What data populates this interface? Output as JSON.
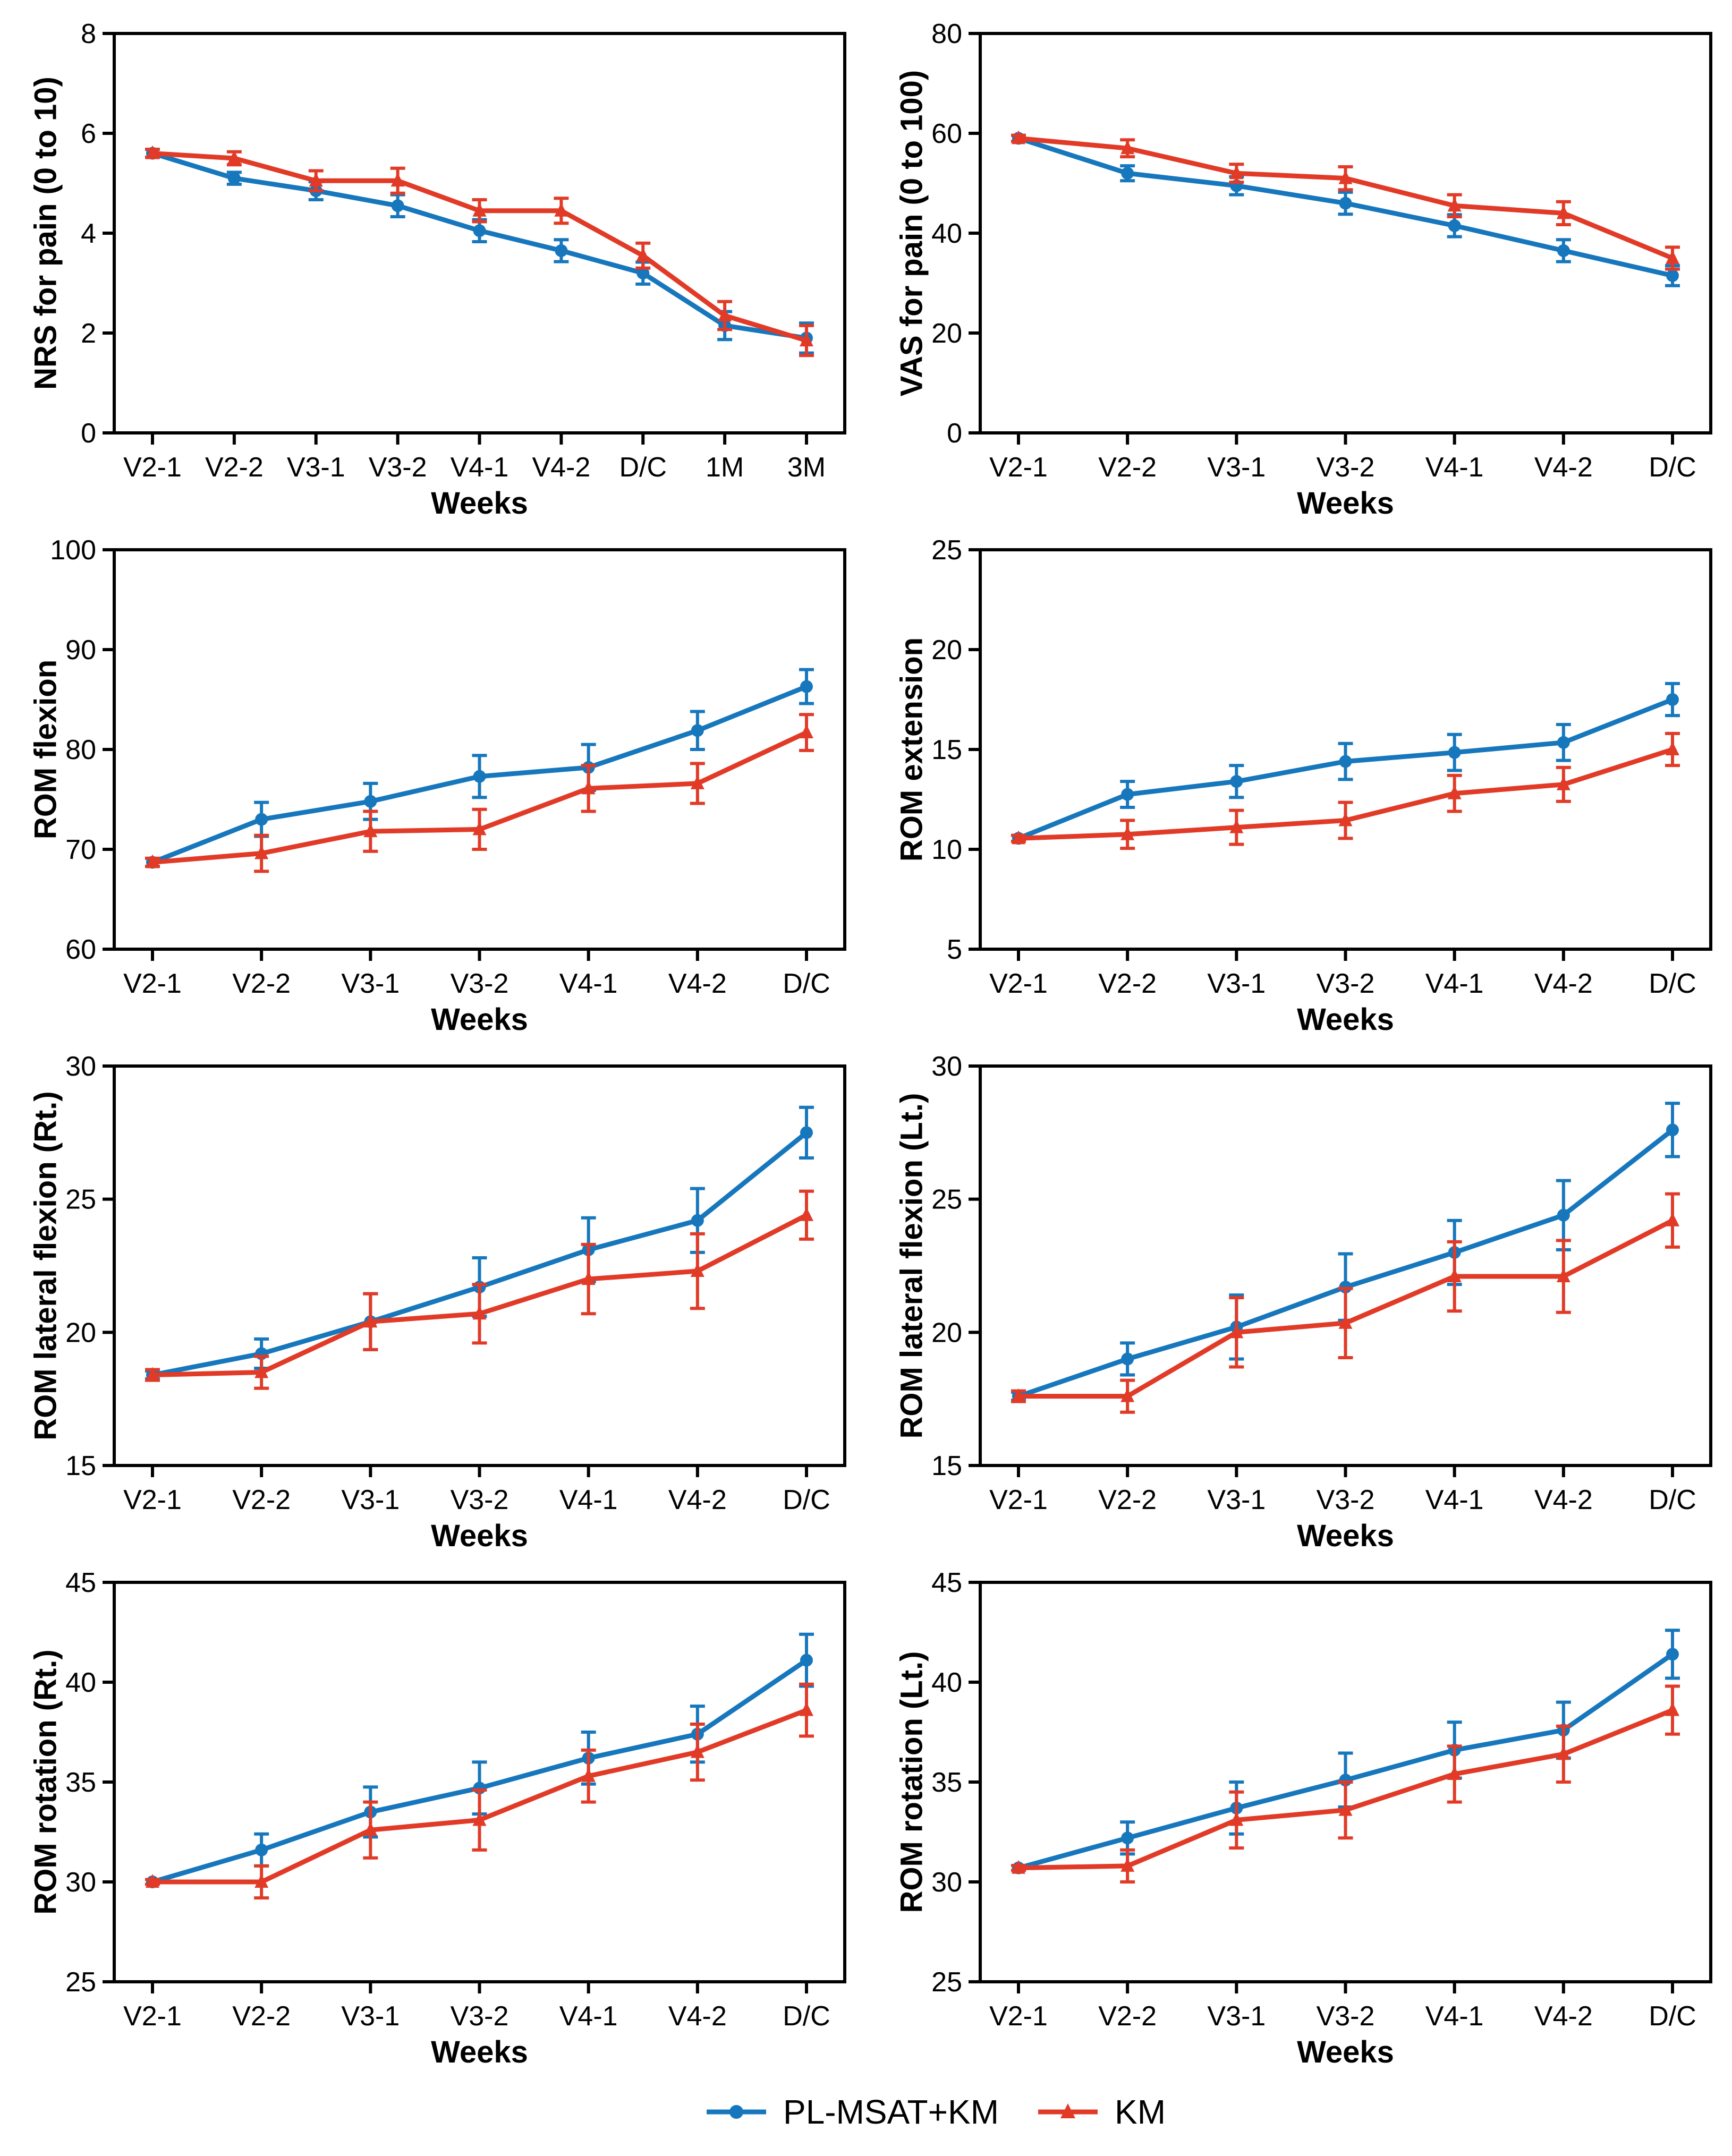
{
  "figure": {
    "background": "#ffffff",
    "colors": {
      "pl_msat_km": "#1777bd",
      "km": "#e13b28",
      "axis": "#000000"
    },
    "legend": {
      "items": [
        {
          "label": "PL-MSAT+KM",
          "color": "#1777bd",
          "marker": "circle"
        },
        {
          "label": "KM",
          "color": "#e13b28",
          "marker": "triangle"
        }
      ]
    }
  },
  "chart_data": [
    {
      "type": "line",
      "id": "nrs-pain",
      "title": "",
      "ylabel": "NRS for pain (0 to 10)",
      "xlabel": "Weeks",
      "categories": [
        "V2-1",
        "V2-2",
        "V3-1",
        "V3-2",
        "V4-1",
        "V4-2",
        "D/C",
        "1M",
        "3M"
      ],
      "ylim": [
        0,
        8
      ],
      "yticks": [
        0,
        2,
        4,
        6,
        8
      ],
      "grid": false,
      "legend_position": "bottom-figure",
      "series": [
        {
          "name": "PL-MSAT+KM",
          "marker": "circle",
          "color": "#1777bd",
          "values": [
            5.6,
            5.1,
            4.85,
            4.55,
            4.05,
            3.65,
            3.2,
            2.15,
            1.9
          ],
          "errors": [
            0.08,
            0.12,
            0.18,
            0.22,
            0.22,
            0.22,
            0.22,
            0.28,
            0.3
          ]
        },
        {
          "name": "KM",
          "marker": "triangle",
          "color": "#e13b28",
          "values": [
            5.6,
            5.5,
            5.05,
            5.05,
            4.45,
            4.45,
            3.55,
            2.35,
            1.85
          ],
          "errors": [
            0.08,
            0.13,
            0.2,
            0.25,
            0.22,
            0.25,
            0.25,
            0.28,
            0.3
          ]
        }
      ]
    },
    {
      "type": "line",
      "id": "vas-pain",
      "title": "",
      "ylabel": "VAS for pain (0 to 100)",
      "xlabel": "Weeks",
      "categories": [
        "V2-1",
        "V2-2",
        "V3-1",
        "V3-2",
        "V4-1",
        "V4-2",
        "D/C"
      ],
      "ylim": [
        0,
        80
      ],
      "yticks": [
        0,
        20,
        40,
        60,
        80
      ],
      "grid": false,
      "series": [
        {
          "name": "PL-MSAT+KM",
          "marker": "circle",
          "color": "#1777bd",
          "values": [
            59,
            52,
            49.5,
            46,
            41.5,
            36.5,
            31.5
          ],
          "errors": [
            0.6,
            1.5,
            1.8,
            2.2,
            2.2,
            2.2,
            2.0
          ]
        },
        {
          "name": "KM",
          "marker": "triangle",
          "color": "#e13b28",
          "values": [
            59,
            57,
            52,
            51,
            45.5,
            44,
            35
          ],
          "errors": [
            0.6,
            1.7,
            1.8,
            2.3,
            2.2,
            2.3,
            2.2
          ]
        }
      ]
    },
    {
      "type": "line",
      "id": "rom-flexion",
      "title": "",
      "ylabel": "ROM flexion",
      "xlabel": "Weeks",
      "categories": [
        "V2-1",
        "V2-2",
        "V3-1",
        "V3-2",
        "V4-1",
        "V4-2",
        "D/C"
      ],
      "ylim": [
        60,
        100
      ],
      "yticks": [
        60,
        70,
        80,
        90,
        100
      ],
      "grid": false,
      "series": [
        {
          "name": "PL-MSAT+KM",
          "marker": "circle",
          "color": "#1777bd",
          "values": [
            68.7,
            73,
            74.8,
            77.3,
            78.2,
            81.9,
            86.3
          ],
          "errors": [
            0.4,
            1.7,
            1.8,
            2.1,
            2.3,
            1.9,
            1.7
          ]
        },
        {
          "name": "KM",
          "marker": "triangle",
          "color": "#e13b28",
          "values": [
            68.7,
            69.6,
            71.8,
            72,
            76.1,
            76.6,
            81.7
          ],
          "errors": [
            0.4,
            1.8,
            2.0,
            2.0,
            2.3,
            2.0,
            1.8
          ]
        }
      ]
    },
    {
      "type": "line",
      "id": "rom-extension",
      "title": "",
      "ylabel": "ROM extension",
      "xlabel": "Weeks",
      "categories": [
        "V2-1",
        "V2-2",
        "V3-1",
        "V3-2",
        "V4-1",
        "V4-2",
        "D/C"
      ],
      "ylim": [
        5,
        25
      ],
      "yticks": [
        5,
        10,
        15,
        20,
        25
      ],
      "grid": false,
      "series": [
        {
          "name": "PL-MSAT+KM",
          "marker": "circle",
          "color": "#1777bd",
          "values": [
            10.55,
            12.75,
            13.4,
            14.4,
            14.85,
            15.35,
            17.5
          ],
          "errors": [
            0.15,
            0.65,
            0.8,
            0.9,
            0.9,
            0.9,
            0.8
          ]
        },
        {
          "name": "KM",
          "marker": "triangle",
          "color": "#e13b28",
          "values": [
            10.55,
            10.75,
            11.1,
            11.45,
            12.8,
            13.25,
            15
          ],
          "errors": [
            0.15,
            0.7,
            0.85,
            0.9,
            0.9,
            0.85,
            0.8
          ]
        }
      ]
    },
    {
      "type": "line",
      "id": "rom-lateral-flexion-rt",
      "title": "",
      "ylabel": "ROM lateral flexion (Rt.)",
      "xlabel": "Weeks",
      "categories": [
        "V2-1",
        "V2-2",
        "V3-1",
        "V3-2",
        "V4-1",
        "V4-2",
        "D/C"
      ],
      "ylim": [
        15,
        30
      ],
      "yticks": [
        15,
        20,
        25,
        30
      ],
      "grid": false,
      "series": [
        {
          "name": "PL-MSAT+KM",
          "marker": "circle",
          "color": "#1777bd",
          "values": [
            18.4,
            19.2,
            20.4,
            21.7,
            23.1,
            24.2,
            27.5
          ],
          "errors": [
            0.15,
            0.55,
            1.05,
            1.1,
            1.2,
            1.2,
            0.95
          ]
        },
        {
          "name": "KM",
          "marker": "triangle",
          "color": "#e13b28",
          "values": [
            18.4,
            18.5,
            20.4,
            20.7,
            22,
            22.3,
            24.4
          ],
          "errors": [
            0.2,
            0.6,
            1.05,
            1.1,
            1.3,
            1.4,
            0.9
          ]
        }
      ]
    },
    {
      "type": "line",
      "id": "rom-lateral-flexion-lt",
      "title": "",
      "ylabel": "ROM lateral flexion (Lt.)",
      "xlabel": "Weeks",
      "categories": [
        "V2-1",
        "V2-2",
        "V3-1",
        "V3-2",
        "V4-1",
        "V4-2",
        "D/C"
      ],
      "ylim": [
        15,
        30
      ],
      "yticks": [
        15,
        20,
        25,
        30
      ],
      "grid": false,
      "series": [
        {
          "name": "PL-MSAT+KM",
          "marker": "circle",
          "color": "#1777bd",
          "values": [
            17.6,
            19,
            20.2,
            21.7,
            23,
            24.4,
            27.6
          ],
          "errors": [
            0.15,
            0.6,
            1.2,
            1.25,
            1.2,
            1.3,
            1.0
          ]
        },
        {
          "name": "KM",
          "marker": "triangle",
          "color": "#e13b28",
          "values": [
            17.6,
            17.6,
            20,
            20.35,
            22.1,
            22.1,
            24.2
          ],
          "errors": [
            0.2,
            0.6,
            1.3,
            1.3,
            1.3,
            1.35,
            1.0
          ]
        }
      ]
    },
    {
      "type": "line",
      "id": "rom-rotation-rt",
      "title": "",
      "ylabel": "ROM rotation (Rt.)",
      "xlabel": "Weeks",
      "categories": [
        "V2-1",
        "V2-2",
        "V3-1",
        "V3-2",
        "V4-1",
        "V4-2",
        "D/C"
      ],
      "ylim": [
        25,
        45
      ],
      "yticks": [
        25,
        30,
        35,
        40,
        45
      ],
      "grid": false,
      "series": [
        {
          "name": "PL-MSAT+KM",
          "marker": "circle",
          "color": "#1777bd",
          "values": [
            30,
            31.6,
            33.5,
            34.7,
            36.2,
            37.4,
            41.1
          ],
          "errors": [
            0.12,
            0.8,
            1.25,
            1.3,
            1.3,
            1.4,
            1.3
          ]
        },
        {
          "name": "KM",
          "marker": "triangle",
          "color": "#e13b28",
          "values": [
            30,
            30,
            32.6,
            33.1,
            35.3,
            36.5,
            38.6
          ],
          "errors": [
            0.12,
            0.8,
            1.4,
            1.5,
            1.3,
            1.4,
            1.3
          ]
        }
      ]
    },
    {
      "type": "line",
      "id": "rom-rotation-lt",
      "title": "",
      "ylabel": "ROM rotation (Lt.)",
      "xlabel": "Weeks",
      "categories": [
        "V2-1",
        "V2-2",
        "V3-1",
        "V3-2",
        "V4-1",
        "V4-2",
        "D/C"
      ],
      "ylim": [
        25,
        45
      ],
      "yticks": [
        25,
        30,
        35,
        40,
        45
      ],
      "grid": false,
      "series": [
        {
          "name": "PL-MSAT+KM",
          "marker": "circle",
          "color": "#1777bd",
          "values": [
            30.7,
            32.2,
            33.7,
            35.1,
            36.6,
            37.6,
            41.4
          ],
          "errors": [
            0.12,
            0.8,
            1.3,
            1.35,
            1.4,
            1.4,
            1.2
          ]
        },
        {
          "name": "KM",
          "marker": "triangle",
          "color": "#e13b28",
          "values": [
            30.7,
            30.8,
            33.1,
            33.6,
            35.4,
            36.4,
            38.6
          ],
          "errors": [
            0.12,
            0.8,
            1.4,
            1.4,
            1.4,
            1.4,
            1.2
          ]
        }
      ]
    }
  ]
}
